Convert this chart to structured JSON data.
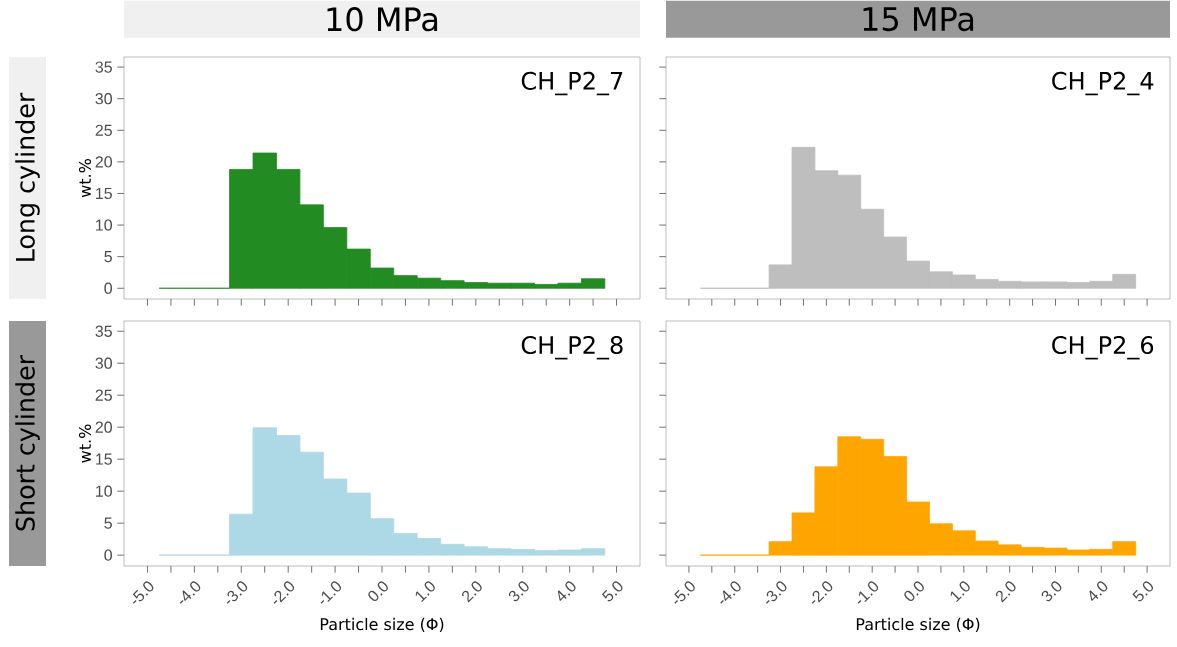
{
  "chart_data": [
    {
      "type": "histogram",
      "title": "10 MPa",
      "ylabel": "wt.%",
      "annotations": [
        "CH_P2_7",
        "Long cylinder"
      ],
      "tick_labels": "y",
      "color": "#228b22",
      "bins": [
        -4.75,
        -4.25,
        -3.75,
        -3.25,
        -2.75,
        -2.25,
        -1.75,
        -1.25,
        -0.75,
        -0.25,
        0.25,
        0.75,
        1.25,
        1.75,
        2.25,
        2.75,
        3.25,
        3.75,
        4.25,
        4.75
      ],
      "values": [
        0,
        0,
        0,
        18.8,
        21.4,
        18.8,
        13.2,
        9.6,
        6.2,
        3.2,
        2.0,
        1.6,
        1.2,
        0.9,
        0.8,
        0.8,
        0.6,
        0.8,
        1.5
      ],
      "xlim": [
        -5.5,
        5.5
      ],
      "ylim": [
        -1.7,
        36.6
      ],
      "xticks": [
        {
          "value": -5,
          "label": null
        },
        {
          "value": -4.5,
          "label": null
        },
        {
          "value": -4,
          "label": null
        },
        {
          "value": -3.5,
          "label": null
        },
        {
          "value": -3,
          "label": null
        },
        {
          "value": -2.5,
          "label": null
        },
        {
          "value": -2,
          "label": null
        },
        {
          "value": -1.5,
          "label": null
        },
        {
          "value": -1,
          "label": null
        },
        {
          "value": -0.5,
          "label": null
        },
        {
          "value": 0,
          "label": null
        },
        {
          "value": 0.5,
          "label": null
        },
        {
          "value": 1,
          "label": null
        },
        {
          "value": 1.5,
          "label": null
        },
        {
          "value": 2,
          "label": null
        },
        {
          "value": 2.5,
          "label": null
        },
        {
          "value": 3,
          "label": null
        },
        {
          "value": 3.5,
          "label": null
        },
        {
          "value": 4,
          "label": null
        },
        {
          "value": 4.5,
          "label": null
        },
        {
          "value": 5,
          "label": null
        }
      ],
      "yticks": [
        0,
        5,
        10,
        15,
        20,
        25,
        30,
        35
      ]
    },
    {
      "type": "histogram",
      "title": "15 MPa",
      "annotations": [
        "CH_P2_4"
      ],
      "tick_labels": false,
      "color": "#bebebe",
      "bins": [
        -4.75,
        -4.25,
        -3.75,
        -3.25,
        -2.75,
        -2.25,
        -1.75,
        -1.25,
        -0.75,
        -0.25,
        0.25,
        0.75,
        1.25,
        1.75,
        2.25,
        2.75,
        3.25,
        3.75,
        4.25,
        4.75
      ],
      "values": [
        0,
        0,
        0,
        3.7,
        22.3,
        18.6,
        17.9,
        12.5,
        8.1,
        4.3,
        2.6,
        2.1,
        1.4,
        1.1,
        1.0,
        1.0,
        0.9,
        1.1,
        2.2
      ],
      "xlim": [
        -5.5,
        5.5
      ],
      "ylim": [
        -1.7,
        36.6
      ],
      "xticks": [
        {
          "value": -5,
          "label": null
        },
        {
          "value": -4.5,
          "label": null
        },
        {
          "value": -4,
          "label": null
        },
        {
          "value": -3.5,
          "label": null
        },
        {
          "value": -3,
          "label": null
        },
        {
          "value": -2.5,
          "label": null
        },
        {
          "value": -2,
          "label": null
        },
        {
          "value": -1.5,
          "label": null
        },
        {
          "value": -1,
          "label": null
        },
        {
          "value": -0.5,
          "label": null
        },
        {
          "value": 0,
          "label": null
        },
        {
          "value": 0.5,
          "label": null
        },
        {
          "value": 1,
          "label": null
        },
        {
          "value": 1.5,
          "label": null
        },
        {
          "value": 2,
          "label": null
        },
        {
          "value": 2.5,
          "label": null
        },
        {
          "value": 3,
          "label": null
        },
        {
          "value": 3.5,
          "label": null
        },
        {
          "value": 4,
          "label": null
        },
        {
          "value": 4.5,
          "label": null
        },
        {
          "value": 5,
          "label": null
        }
      ],
      "yticks": [
        0,
        5,
        10,
        15,
        20,
        25,
        30,
        35
      ]
    },
    {
      "type": "histogram",
      "xlabel": "Particle size (Φ)",
      "ylabel": "wt.%",
      "annotations": [
        "CH_P2_8",
        "Short cylinder"
      ],
      "color": "#add8e6",
      "bins": [
        -4.75,
        -4.25,
        -3.75,
        -3.25,
        -2.75,
        -2.25,
        -1.75,
        -1.25,
        -0.75,
        -0.25,
        0.25,
        0.75,
        1.25,
        1.75,
        2.25,
        2.75,
        3.25,
        3.75,
        4.25,
        4.75
      ],
      "values": [
        0,
        0,
        0,
        6.4,
        19.9,
        18.7,
        16.1,
        11.9,
        9.7,
        5.7,
        3.4,
        2.6,
        1.7,
        1.3,
        1.0,
        0.9,
        0.7,
        0.8,
        1.0
      ],
      "xlim": [
        -5.5,
        5.5
      ],
      "ylim": [
        -1.7,
        36.6
      ],
      "xticks": [
        {
          "value": -5,
          "label": "-5.0"
        },
        {
          "value": -4.5,
          "label": null
        },
        {
          "value": -4,
          "label": "-4.0"
        },
        {
          "value": -3.5,
          "label": null
        },
        {
          "value": -3,
          "label": "-3.0"
        },
        {
          "value": -2.5,
          "label": null
        },
        {
          "value": -2,
          "label": "-2.0"
        },
        {
          "value": -1.5,
          "label": null
        },
        {
          "value": -1,
          "label": "-1.0"
        },
        {
          "value": -0.5,
          "label": null
        },
        {
          "value": 0,
          "label": "0.0"
        },
        {
          "value": 0.5,
          "label": null
        },
        {
          "value": 1,
          "label": "1.0"
        },
        {
          "value": 1.5,
          "label": null
        },
        {
          "value": 2,
          "label": "2.0"
        },
        {
          "value": 2.5,
          "label": null
        },
        {
          "value": 3,
          "label": "3.0"
        },
        {
          "value": 3.5,
          "label": null
        },
        {
          "value": 4,
          "label": "4.0"
        },
        {
          "value": 4.5,
          "label": null
        },
        {
          "value": 5,
          "label": "5.0"
        }
      ],
      "yticks": [
        0,
        5,
        10,
        15,
        20,
        25,
        30,
        35
      ]
    },
    {
      "type": "histogram",
      "xlabel": "Particle size (Φ)",
      "annotations": [
        "CH_P2_6"
      ],
      "tick_labels": "x",
      "color": "#ffa500",
      "bins": [
        -4.75,
        -4.25,
        -3.75,
        -3.25,
        -2.75,
        -2.25,
        -1.75,
        -1.25,
        -0.75,
        -0.25,
        0.25,
        0.75,
        1.25,
        1.75,
        2.25,
        2.75,
        3.25,
        3.75,
        4.25,
        4.75
      ],
      "values": [
        0,
        0,
        0,
        2.1,
        6.6,
        13.8,
        18.5,
        18.1,
        15.4,
        8.3,
        4.9,
        3.8,
        2.2,
        1.6,
        1.2,
        1.1,
        0.8,
        0.9,
        2.1
      ],
      "xlim": [
        -5.5,
        5.5
      ],
      "ylim": [
        -1.7,
        36.6
      ],
      "xticks": [
        {
          "value": -5,
          "label": "-5.0"
        },
        {
          "value": -4.5,
          "label": null
        },
        {
          "value": -4,
          "label": "-4.0"
        },
        {
          "value": -3.5,
          "label": null
        },
        {
          "value": -3,
          "label": "-3.0"
        },
        {
          "value": -2.5,
          "label": null
        },
        {
          "value": -2,
          "label": "-2.0"
        },
        {
          "value": -1.5,
          "label": null
        },
        {
          "value": -1,
          "label": "-1.0"
        },
        {
          "value": -0.5,
          "label": null
        },
        {
          "value": 0,
          "label": "0.0"
        },
        {
          "value": 0.5,
          "label": null
        },
        {
          "value": 1,
          "label": "1.0"
        },
        {
          "value": 1.5,
          "label": null
        },
        {
          "value": 2,
          "label": "2.0"
        },
        {
          "value": 2.5,
          "label": null
        },
        {
          "value": 3,
          "label": "3.0"
        },
        {
          "value": 3.5,
          "label": null
        },
        {
          "value": 4,
          "label": "4.0"
        },
        {
          "value": 4.5,
          "label": null
        },
        {
          "value": 5,
          "label": "5.0"
        }
      ],
      "yticks": [
        0,
        5,
        10,
        15,
        20,
        25,
        30,
        35
      ]
    }
  ]
}
